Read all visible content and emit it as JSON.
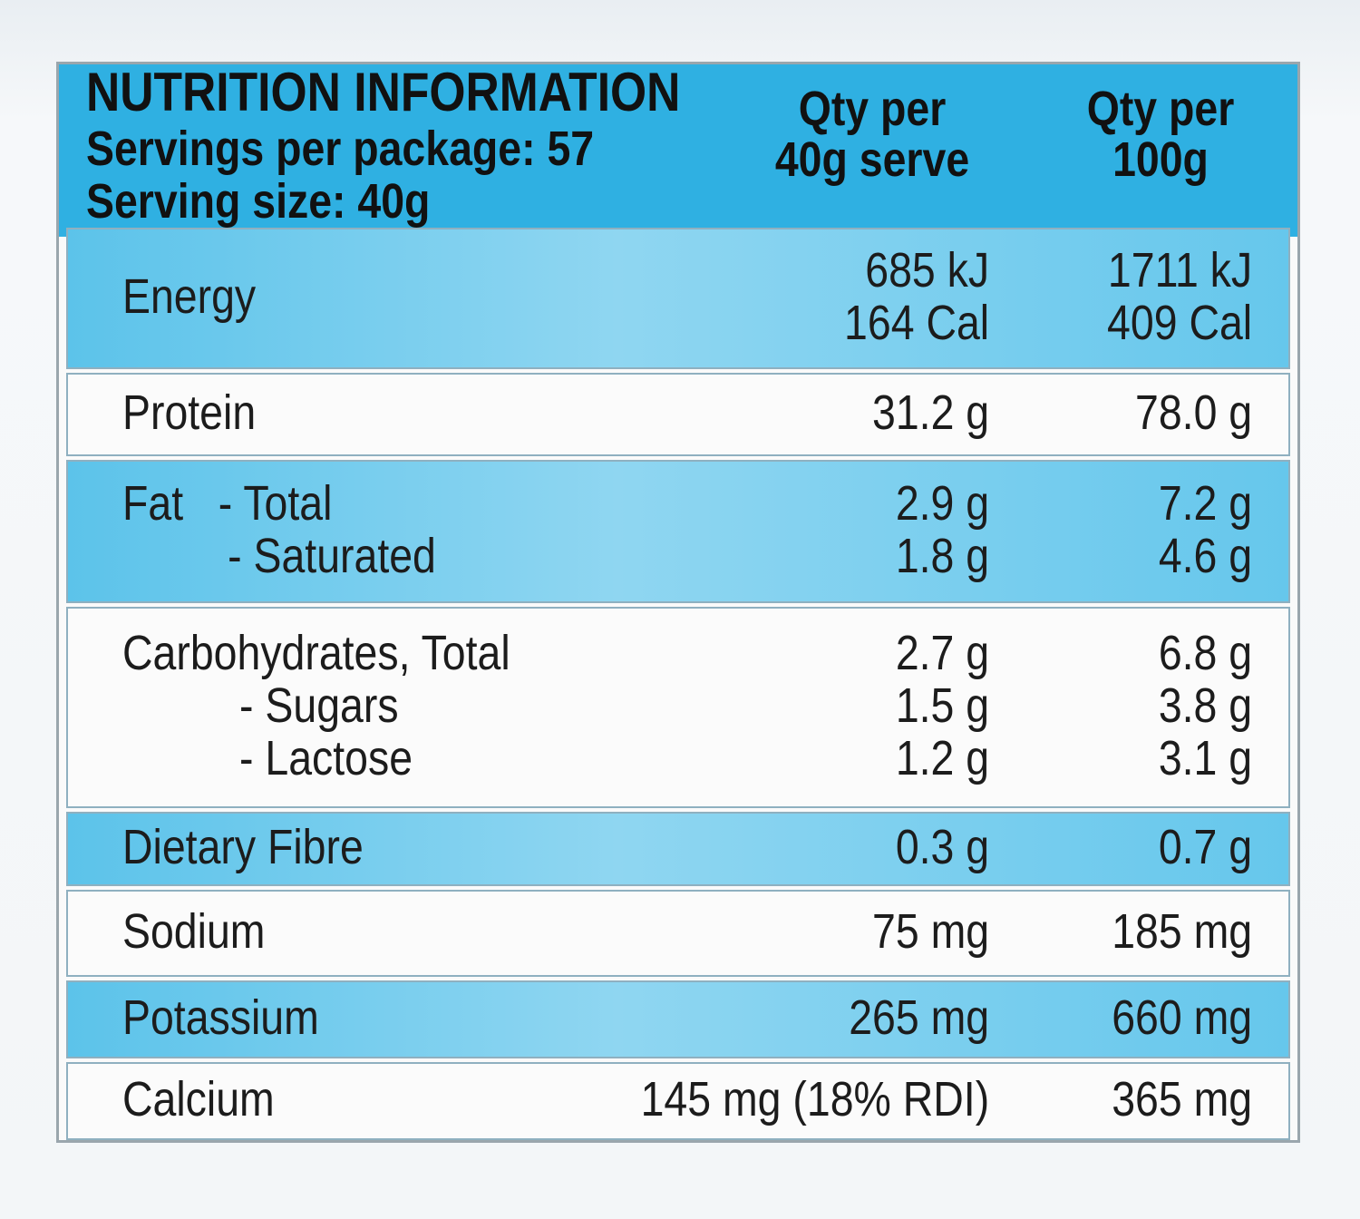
{
  "header": {
    "title": "NUTRITION INFORMATION",
    "servings": "Servings per package: 57",
    "serving_size": "Serving size: 40g",
    "columns": [
      [
        "Qty per",
        "40g serve"
      ],
      [
        "Qty per",
        "100g"
      ]
    ]
  },
  "table": {
    "rows": [
      {
        "label": [
          "Energy"
        ],
        "per_serve": [
          "685 kJ",
          "164 Cal"
        ],
        "per_100g": [
          "1711 kJ",
          "409 Cal"
        ]
      },
      {
        "label": [
          "Protein"
        ],
        "per_serve": [
          "31.2 g"
        ],
        "per_100g": [
          "78.0 g"
        ]
      },
      {
        "label": [
          "Fat   - Total",
          "         - Saturated"
        ],
        "per_serve": [
          "2.9 g",
          "1.8 g"
        ],
        "per_100g": [
          "7.2 g",
          "4.6 g"
        ]
      },
      {
        "label": [
          "Carbohydrates, Total",
          "          - Sugars",
          "          - Lactose"
        ],
        "per_serve": [
          "2.7 g",
          "1.5 g",
          "1.2 g"
        ],
        "per_100g": [
          "6.8 g",
          "3.8 g",
          "3.1 g"
        ]
      },
      {
        "label": [
          "Dietary Fibre"
        ],
        "per_serve": [
          "0.3 g"
        ],
        "per_100g": [
          "0.7 g"
        ]
      },
      {
        "label": [
          "Sodium"
        ],
        "per_serve": [
          "75 mg"
        ],
        "per_100g": [
          "185 mg"
        ]
      },
      {
        "label": [
          "Potassium"
        ],
        "per_serve": [
          "265 mg"
        ],
        "per_100g": [
          "660 mg"
        ]
      },
      {
        "label": [
          "Calcium"
        ],
        "per_serve": [
          "145 mg (18% RDI)"
        ],
        "per_100g": [
          "365 mg"
        ]
      }
    ]
  }
}
